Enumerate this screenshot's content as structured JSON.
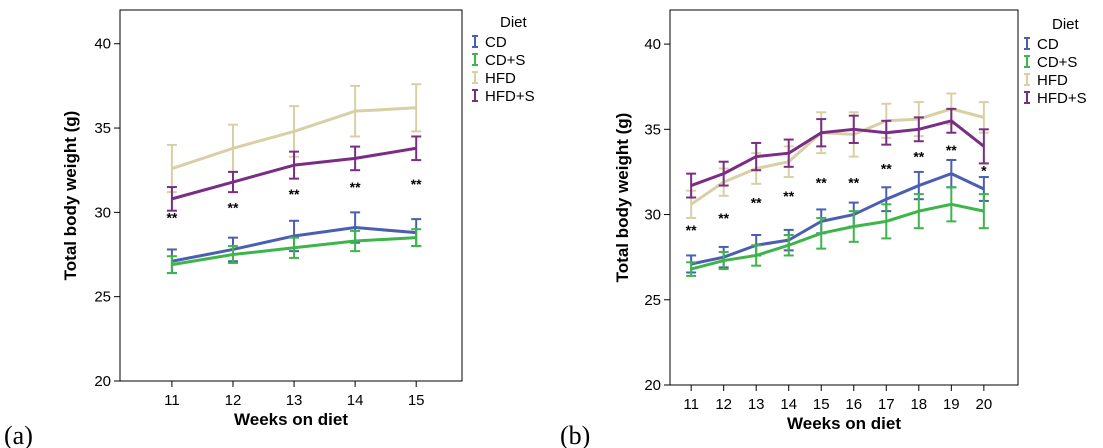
{
  "colors": {
    "CD": "#4a5fb0",
    "CD+S": "#3db54a",
    "HFD": "#d8d0a4",
    "HFD+S": "#7a2d84"
  },
  "chart_data": [
    {
      "type": "line",
      "panel_label": "(a)",
      "title": "",
      "xlabel": "Weeks on diet",
      "ylabel": "Total body weight (g)",
      "x": [
        11,
        12,
        13,
        14,
        15
      ],
      "xlim": [
        10.15,
        15.75
      ],
      "ylim": [
        20,
        42
      ],
      "yticks": [
        20,
        25,
        30,
        35,
        40
      ],
      "legend_title": "Diet",
      "legend_position": "right",
      "series": [
        {
          "name": "CD",
          "values": [
            27.1,
            27.8,
            28.6,
            29.1,
            28.8
          ],
          "err": [
            0.7,
            0.7,
            0.9,
            0.9,
            0.8
          ]
        },
        {
          "name": "CD+S",
          "values": [
            26.9,
            27.5,
            27.9,
            28.3,
            28.5
          ],
          "err": [
            0.5,
            0.5,
            0.6,
            0.6,
            0.5
          ]
        },
        {
          "name": "HFD",
          "values": [
            32.6,
            33.8,
            34.8,
            36.0,
            36.2
          ],
          "err": [
            1.4,
            1.4,
            1.5,
            1.5,
            1.4
          ]
        },
        {
          "name": "HFD+S",
          "values": [
            30.8,
            31.8,
            32.8,
            33.2,
            33.8
          ],
          "err": [
            0.7,
            0.6,
            0.8,
            0.7,
            0.7
          ]
        }
      ],
      "annotations": [
        {
          "x": 11,
          "y": 29.4,
          "text": "**"
        },
        {
          "x": 12,
          "y": 30.0,
          "text": "**"
        },
        {
          "x": 13,
          "y": 30.8,
          "text": "**"
        },
        {
          "x": 14,
          "y": 31.2,
          "text": "**"
        },
        {
          "x": 15,
          "y": 31.4,
          "text": "**"
        }
      ]
    },
    {
      "type": "line",
      "panel_label": "(b)",
      "title": "",
      "xlabel": "Weeks on diet",
      "ylabel": "Total body weight (g)",
      "x": [
        11,
        12,
        13,
        14,
        15,
        16,
        17,
        18,
        19,
        20
      ],
      "xlim": [
        10.35,
        21.05
      ],
      "ylim": [
        20,
        42
      ],
      "yticks": [
        20,
        25,
        30,
        35,
        40
      ],
      "legend_title": "Diet",
      "legend_position": "right",
      "series": [
        {
          "name": "CD",
          "values": [
            27.1,
            27.5,
            28.2,
            28.5,
            29.6,
            30.0,
            30.9,
            31.7,
            32.4,
            31.5
          ],
          "err": [
            0.5,
            0.6,
            0.6,
            0.6,
            0.7,
            0.7,
            0.7,
            0.8,
            0.8,
            0.7
          ]
        },
        {
          "name": "CD+S",
          "values": [
            26.8,
            27.3,
            27.6,
            28.2,
            28.9,
            29.3,
            29.6,
            30.2,
            30.6,
            30.2
          ],
          "err": [
            0.4,
            0.5,
            0.6,
            0.6,
            0.9,
            0.9,
            1.0,
            1.0,
            1.0,
            1.0
          ]
        },
        {
          "name": "HFD",
          "values": [
            30.6,
            31.9,
            32.7,
            33.1,
            34.8,
            34.7,
            35.5,
            35.6,
            36.2,
            35.7
          ],
          "err": [
            0.8,
            0.8,
            0.9,
            0.9,
            1.2,
            1.3,
            1.0,
            1.0,
            0.9,
            0.9
          ]
        },
        {
          "name": "HFD+S",
          "values": [
            31.7,
            32.4,
            33.4,
            33.6,
            34.8,
            35.0,
            34.8,
            35.0,
            35.5,
            34.0
          ],
          "err": [
            0.7,
            0.7,
            0.8,
            0.8,
            0.8,
            0.8,
            0.7,
            0.7,
            0.7,
            1.0
          ]
        }
      ],
      "annotations": [
        {
          "x": 11,
          "y": 28.8,
          "text": "**"
        },
        {
          "x": 12,
          "y": 29.5,
          "text": "**"
        },
        {
          "x": 13,
          "y": 30.4,
          "text": "**"
        },
        {
          "x": 14,
          "y": 30.8,
          "text": "**"
        },
        {
          "x": 15,
          "y": 31.6,
          "text": "**"
        },
        {
          "x": 16,
          "y": 31.6,
          "text": "**"
        },
        {
          "x": 17,
          "y": 32.4,
          "text": "**"
        },
        {
          "x": 18,
          "y": 33.1,
          "text": "**"
        },
        {
          "x": 19,
          "y": 33.5,
          "text": "**"
        },
        {
          "x": 20,
          "y": 32.3,
          "text": "*"
        }
      ]
    }
  ]
}
